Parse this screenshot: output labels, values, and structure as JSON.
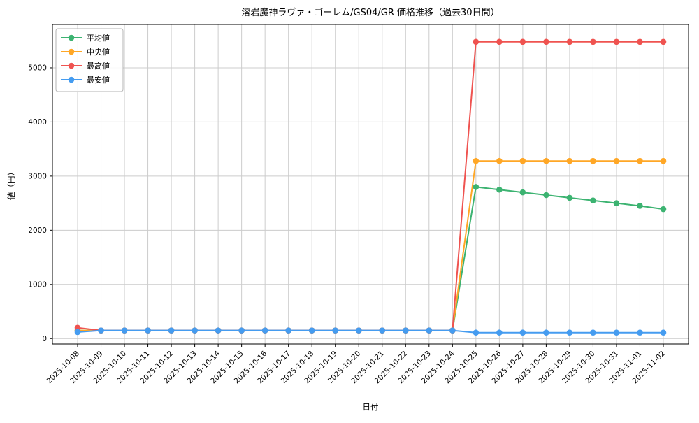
{
  "chart_data": {
    "type": "line",
    "title": "溶岩魔神ラヴァ・ゴーレム/GS04/GR 価格推移（過去30日間）",
    "xlabel": "日付",
    "ylabel": "値（円）",
    "grid": true,
    "legend_position": "upper left",
    "ylim": [
      -100,
      5800
    ],
    "y_ticks": [
      0,
      1000,
      2000,
      3000,
      4000,
      5000
    ],
    "categories": [
      "2025-10-08",
      "2025-10-09",
      "2025-10-10",
      "2025-10-11",
      "2025-10-12",
      "2025-10-13",
      "2025-10-14",
      "2025-10-15",
      "2025-10-16",
      "2025-10-17",
      "2025-10-18",
      "2025-10-19",
      "2025-10-20",
      "2025-10-21",
      "2025-10-22",
      "2025-10-23",
      "2025-10-24",
      "2025-10-25",
      "2025-10-26",
      "2025-10-27",
      "2025-10-28",
      "2025-10-29",
      "2025-10-30",
      "2025-10-31",
      "2025-11-01",
      "2025-11-02"
    ],
    "series": [
      {
        "name": "平均値",
        "key": "average",
        "color": "#3cb371",
        "values": [
          150,
          150,
          150,
          150,
          150,
          150,
          150,
          150,
          150,
          150,
          150,
          150,
          150,
          150,
          150,
          150,
          150,
          2800,
          2750,
          2700,
          2650,
          2600,
          2550,
          2500,
          2450,
          2390
        ]
      },
      {
        "name": "中央値",
        "key": "median",
        "color": "#ffa726",
        "values": [
          150,
          150,
          150,
          150,
          150,
          150,
          150,
          150,
          150,
          150,
          150,
          150,
          150,
          150,
          150,
          150,
          150,
          3280,
          3280,
          3280,
          3280,
          3280,
          3280,
          3280,
          3280,
          3280
        ]
      },
      {
        "name": "最高値",
        "key": "max",
        "color": "#ef5350",
        "values": [
          200,
          150,
          150,
          150,
          150,
          150,
          150,
          150,
          150,
          150,
          150,
          150,
          150,
          150,
          150,
          150,
          150,
          5480,
          5480,
          5480,
          5480,
          5480,
          5480,
          5480,
          5480,
          5480
        ]
      },
      {
        "name": "最安値",
        "key": "min",
        "color": "#459cf0",
        "values": [
          120,
          150,
          150,
          150,
          150,
          150,
          150,
          150,
          150,
          150,
          150,
          150,
          150,
          150,
          150,
          150,
          150,
          110,
          110,
          110,
          110,
          110,
          110,
          110,
          110,
          110
        ]
      }
    ]
  }
}
